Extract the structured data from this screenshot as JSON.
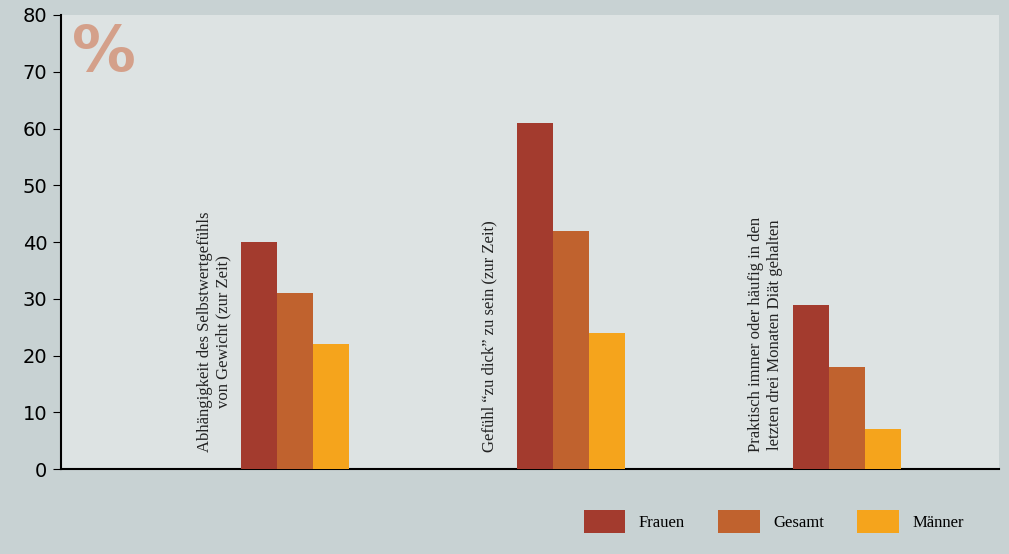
{
  "chart_data": {
    "type": "bar",
    "ylabel": "%",
    "categories": [
      "Abhängigkeit des Selbstwertgefühls\nvon Gewicht (zur Zeit)",
      "Gefühl “zu dick” zu sein (zur Zeit)",
      "Praktisch immer oder häufig in den\nletzten drei Monaten Diät gehalten"
    ],
    "series": [
      {
        "name": "Frauen",
        "color": "#a33b2e",
        "values": [
          40,
          61,
          29
        ]
      },
      {
        "name": "Gesamt",
        "color": "#c0622e",
        "values": [
          31,
          42,
          18
        ]
      },
      {
        "name": "Männer",
        "color": "#f5a41c",
        "values": [
          22,
          24,
          7
        ]
      }
    ],
    "ylim": [
      0,
      80
    ],
    "yticks": [
      0,
      10,
      20,
      30,
      40,
      50,
      60,
      70,
      80
    ],
    "grid": false,
    "legend": "lower right",
    "tick_labels": "y"
  }
}
